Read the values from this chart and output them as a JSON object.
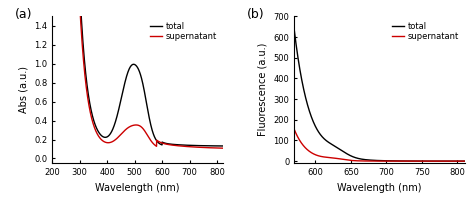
{
  "panel_a": {
    "xlabel": "Wavelength (nm)",
    "ylabel": "Abs (a.u.)",
    "xlim": [
      200,
      820
    ],
    "ylim": [
      -0.05,
      1.5
    ],
    "xticks": [
      200,
      300,
      400,
      500,
      600,
      700,
      800
    ],
    "yticks": [
      0.0,
      0.2,
      0.4,
      0.6,
      0.8,
      1.0,
      1.2,
      1.4
    ],
    "label": "(a)",
    "legend_entries": [
      "total",
      "supernatant"
    ],
    "total_color": "#000000",
    "supernatant_color": "#cc0000"
  },
  "panel_b": {
    "xlabel": "Wavelength (nm)",
    "ylabel": "Fluorescence (a.u.)",
    "xlim": [
      570,
      810
    ],
    "ylim": [
      -10,
      700
    ],
    "xticks": [
      600,
      650,
      700,
      750,
      800
    ],
    "yticks": [
      0,
      100,
      200,
      300,
      400,
      500,
      600,
      700
    ],
    "label": "(b)",
    "legend_entries": [
      "total",
      "supernatant"
    ],
    "total_color": "#000000",
    "supernatant_color": "#cc0000"
  },
  "figure_bg": "#ffffff",
  "linewidth": 1.0,
  "font_size": 7,
  "label_font_size": 9
}
